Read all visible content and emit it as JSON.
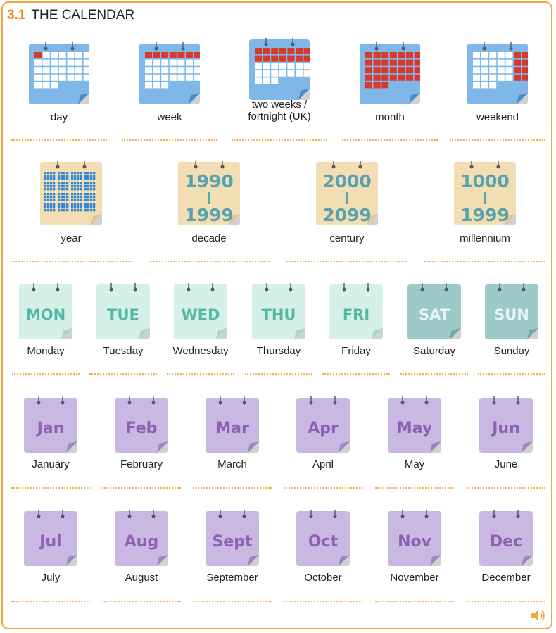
{
  "header": {
    "number": "3.1",
    "title": "THE CALENDAR"
  },
  "colors": {
    "accent": "#f0a940",
    "blue": "#7fb7e8",
    "red": "#d9392b",
    "tan": "#f3ddb2",
    "mint": "#d5efe9",
    "teal": "#9ec9cb",
    "purple": "#c9b8e2"
  },
  "periods": [
    {
      "label": "day",
      "icon": "calendar-day-icon"
    },
    {
      "label": "week",
      "icon": "calendar-week-icon"
    },
    {
      "label": "two weeks /\nfortnight (UK)",
      "icon": "calendar-two-weeks-icon"
    },
    {
      "label": "month",
      "icon": "calendar-month-icon"
    },
    {
      "label": "weekend",
      "icon": "calendar-weekend-icon"
    }
  ],
  "spans": [
    {
      "label": "year",
      "icon": "calendar-year-icon"
    },
    {
      "label": "decade",
      "from": "1990",
      "to": "1999"
    },
    {
      "label": "century",
      "from": "2000",
      "to": "2099"
    },
    {
      "label": "millennium",
      "from": "1000",
      "to": "1999"
    }
  ],
  "days": [
    {
      "abbr": "MON",
      "label": "Monday"
    },
    {
      "abbr": "TUE",
      "label": "Tuesday"
    },
    {
      "abbr": "WED",
      "label": "Wednesday"
    },
    {
      "abbr": "THU",
      "label": "Thursday"
    },
    {
      "abbr": "FRI",
      "label": "Friday"
    },
    {
      "abbr": "SAT",
      "label": "Saturday"
    },
    {
      "abbr": "SUN",
      "label": "Sunday"
    }
  ],
  "months": [
    {
      "abbr": "Jan",
      "label": "January"
    },
    {
      "abbr": "Feb",
      "label": "February"
    },
    {
      "abbr": "Mar",
      "label": "March"
    },
    {
      "abbr": "Apr",
      "label": "April"
    },
    {
      "abbr": "May",
      "label": "May"
    },
    {
      "abbr": "Jun",
      "label": "June"
    },
    {
      "abbr": "Jul",
      "label": "July"
    },
    {
      "abbr": "Aug",
      "label": "August"
    },
    {
      "abbr": "Sept",
      "label": "September"
    },
    {
      "abbr": "Oct",
      "label": "October"
    },
    {
      "abbr": "Nov",
      "label": "November"
    },
    {
      "abbr": "Dec",
      "label": "December"
    }
  ],
  "audio": {
    "icon": "speaker-icon"
  }
}
